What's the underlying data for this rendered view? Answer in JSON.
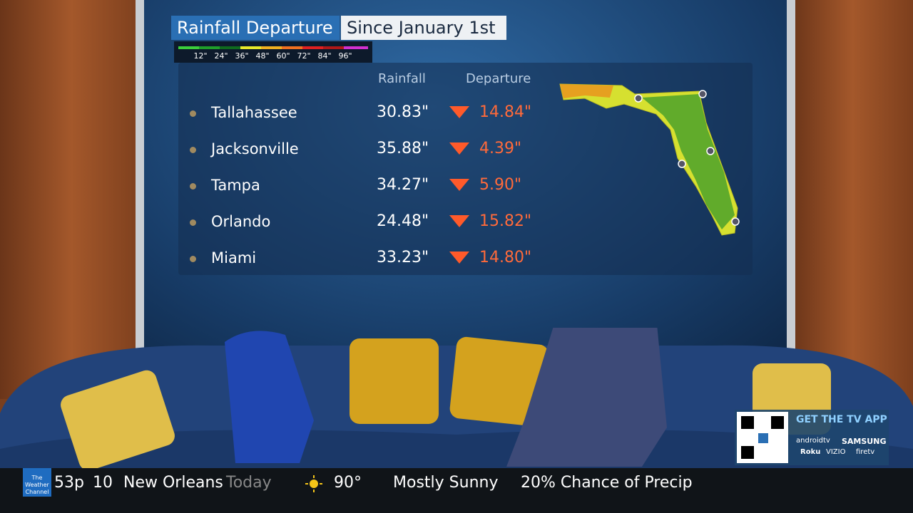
{
  "graphic": {
    "title": "Rainfall Departure",
    "subtitle": "Since January 1st",
    "legend": [
      "12\"",
      "24\"",
      "36\"",
      "48\"",
      "60\"",
      "72\"",
      "84\"",
      "96\""
    ],
    "headers": [
      "Rainfall",
      "Departure"
    ],
    "rows": [
      [
        "Tallahassee",
        "30.83\"",
        "14.84\""
      ],
      [
        "Jacksonville",
        "35.88\"",
        "4.39\""
      ],
      [
        "Tampa",
        "34.27\"",
        "5.90\""
      ],
      [
        "Orlando",
        "24.48\"",
        "15.82\""
      ],
      [
        "Miami",
        "33.23\"",
        "14.80\""
      ]
    ]
  },
  "ticker": {
    "logo": "The Weather Channel",
    "temp": "53p",
    "time": "10",
    "city": "New Orleans",
    "period": "Today",
    "high": "90°",
    "condition": "Mostly Sunny",
    "precip": "20% Chance of Precip"
  },
  "promo": {
    "title": "GET THE TV APP",
    "platforms": [
      "androidtv",
      "SAMSUNG",
      "Roku",
      "VIZIO",
      "firetv"
    ]
  }
}
